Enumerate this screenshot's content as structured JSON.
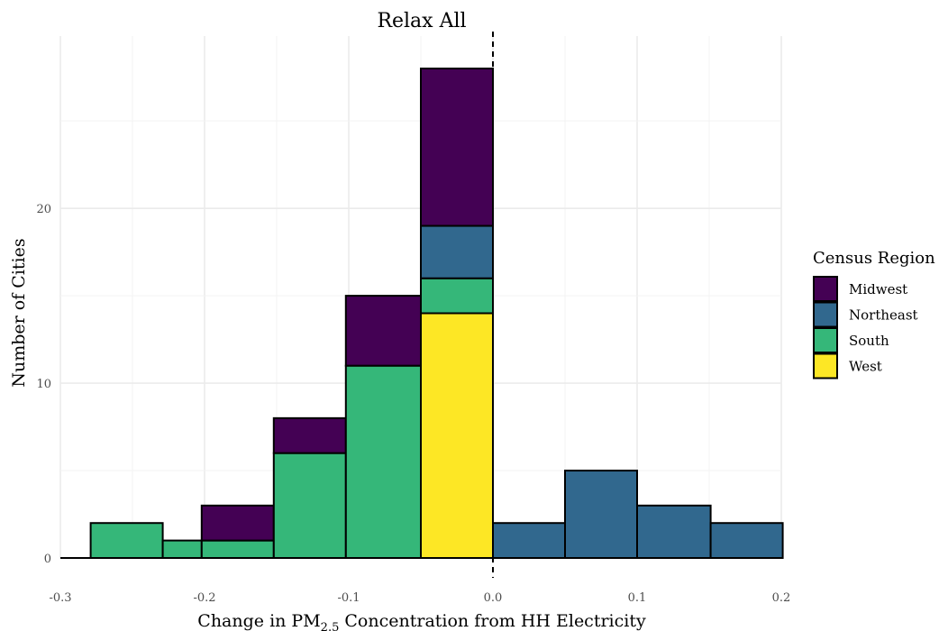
{
  "chart_data": {
    "type": "bar",
    "stacked": true,
    "title": "Relax All",
    "xlabel": {
      "pre": "Change in PM",
      "sub": "2.5",
      "post": " Concentration from HH Electricity"
    },
    "ylabel": "Number of Cities",
    "xlim": [
      -0.3,
      0.2
    ],
    "ylim": [
      0,
      28
    ],
    "x_ticks": [
      -0.3,
      -0.2,
      -0.1,
      0.0,
      0.1,
      0.2
    ],
    "x_tick_labels": [
      "-0.3",
      "-0.2",
      "-0.1",
      "0.0",
      "0.1",
      "0.2"
    ],
    "y_ticks": [
      0,
      10,
      20
    ],
    "y_tick_labels": [
      "0",
      "10",
      "20"
    ],
    "reference_line": {
      "x": 0.0,
      "style": "dashed"
    },
    "grid": true,
    "legend": {
      "title": "Census Region",
      "position": "right",
      "entries": [
        {
          "name": "Midwest",
          "color": "#440154"
        },
        {
          "name": "Northeast",
          "color": "#31688E"
        },
        {
          "name": "South",
          "color": "#35B779"
        },
        {
          "name": "West",
          "color": "#FDE725"
        }
      ]
    },
    "bins": [
      {
        "x0": -0.279,
        "x1": -0.229,
        "values": {
          "South": 2
        }
      },
      {
        "x0": -0.229,
        "x1": -0.202,
        "values": {
          "South": 1
        }
      },
      {
        "x0": -0.202,
        "x1": -0.152,
        "values": {
          "South": 1,
          "Midwest": 2
        }
      },
      {
        "x0": -0.152,
        "x1": -0.102,
        "values": {
          "South": 6,
          "Midwest": 2
        }
      },
      {
        "x0": -0.102,
        "x1": -0.05,
        "values": {
          "South": 11,
          "Midwest": 4
        }
      },
      {
        "x0": -0.05,
        "x1": 0.0,
        "values": {
          "West": 14,
          "South": 2,
          "Northeast": 3,
          "Midwest": 9
        }
      },
      {
        "x0": 0.0,
        "x1": 0.05,
        "values": {
          "Northeast": 2
        }
      },
      {
        "x0": 0.05,
        "x1": 0.1,
        "values": {
          "Northeast": 5
        }
      },
      {
        "x0": 0.1,
        "x1": 0.151,
        "values": {
          "Northeast": 3
        }
      },
      {
        "x0": 0.151,
        "x1": 0.201,
        "values": {
          "Northeast": 2
        }
      }
    ],
    "stack_order": [
      "West",
      "South",
      "Northeast",
      "Midwest"
    ]
  }
}
